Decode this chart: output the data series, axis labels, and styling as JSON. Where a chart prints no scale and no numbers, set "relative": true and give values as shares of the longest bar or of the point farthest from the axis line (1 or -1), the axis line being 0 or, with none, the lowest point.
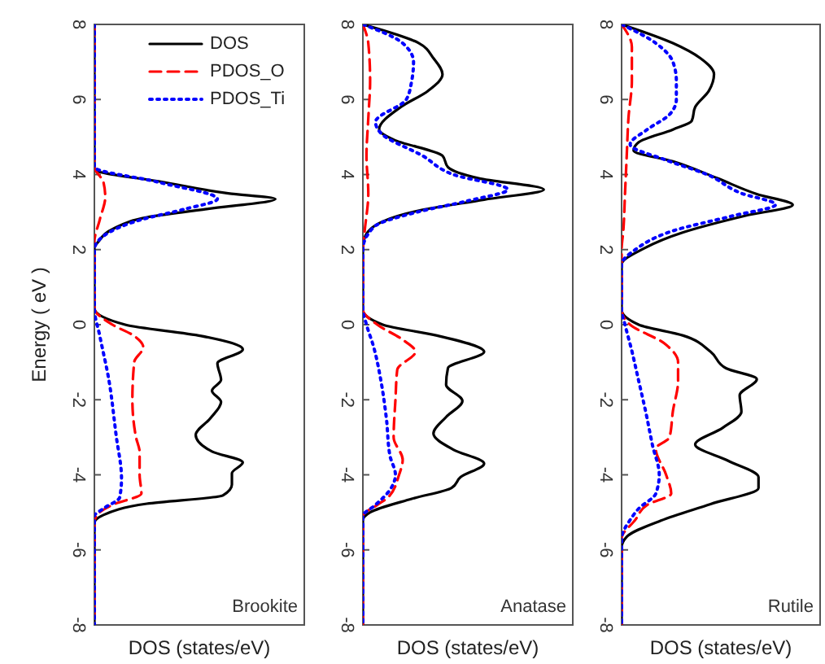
{
  "chart_data": [
    {
      "type": "line",
      "orientation": "horizontal",
      "relative": true,
      "ylabel": "Energy ( eV )",
      "xlabel": "DOS (states/eV)",
      "ylim": [
        -8,
        8
      ],
      "yticks": [
        -8,
        -6,
        -4,
        -2,
        0,
        2,
        4,
        6,
        8
      ],
      "legend": "top right",
      "annotations": [
        "Brookite"
      ],
      "series": [
        {
          "name": "DOS",
          "color": "#000000",
          "line_style": "solid",
          "x": [
            8,
            4.2,
            4.14,
            3.8,
            3.5,
            3.35,
            3.08,
            2.86,
            2.57,
            2.2,
            2.05,
            0.44,
            0,
            -0.3,
            -0.66,
            -1.03,
            -1.47,
            -1.76,
            -2.06,
            -2.5,
            -2.94,
            -3.38,
            -3.67,
            -3.96,
            -4.26,
            -4.55,
            -4.77,
            -5.07,
            -5.29,
            -8
          ],
          "values": [
            0,
            0,
            0,
            0.38,
            0.74,
            1,
            0.62,
            0.29,
            0.11,
            0.02,
            0,
            0,
            0.17,
            0.59,
            0.82,
            0.68,
            0.7,
            0.65,
            0.7,
            0.64,
            0.56,
            0.65,
            0.82,
            0.76,
            0.76,
            0.71,
            0.29,
            0.05,
            0,
            0
          ]
        },
        {
          "name": "PDOS_O",
          "color": "#ff0000",
          "line_style": "dashed",
          "x": [
            8,
            4.2,
            3.8,
            3.4,
            2.8,
            2.2,
            0.44,
            0,
            -0.3,
            -0.6,
            -1,
            -2,
            -3,
            -3.4,
            -4,
            -4.5,
            -4.8,
            -5.1,
            -5.3,
            -8
          ],
          "values": [
            0,
            0,
            0.05,
            0.06,
            0.03,
            0,
            0,
            0.1,
            0.22,
            0.27,
            0.22,
            0.21,
            0.23,
            0.25,
            0.25,
            0.26,
            0.1,
            0.01,
            0,
            0
          ]
        },
        {
          "name": "PDOS_Ti",
          "color": "#0000ff",
          "line_style": "dotted",
          "x": [
            8,
            4.2,
            3.8,
            3.35,
            3.08,
            2.8,
            2.36,
            2,
            0.44,
            -0.3,
            -1.47,
            -2.94,
            -4.1,
            -4.6,
            -4.9,
            -5.1,
            -8
          ],
          "values": [
            0,
            0,
            0.35,
            0.68,
            0.5,
            0.26,
            0.05,
            0,
            0,
            0.03,
            0.08,
            0.12,
            0.15,
            0.14,
            0.05,
            0,
            0
          ]
        }
      ]
    },
    {
      "type": "line",
      "orientation": "horizontal",
      "relative": true,
      "xlabel": "DOS (states/eV)",
      "ylim": [
        -8,
        8
      ],
      "yticks": [
        -8,
        -6,
        -4,
        -2,
        0,
        2,
        4,
        6,
        8
      ],
      "annotations": [
        "Anatase"
      ],
      "series": [
        {
          "color": "#000000",
          "line_style": "solid",
          "x": [
            8,
            7.5,
            7.1,
            6.67,
            6.23,
            5.8,
            5.2,
            4.93,
            4.5,
            4.2,
            3.9,
            3.6,
            3.33,
            3.04,
            2.75,
            2.32,
            2.03,
            0.4,
            0,
            -0.29,
            -0.72,
            -1.16,
            -1.6,
            -2.03,
            -2.46,
            -2.9,
            -3.33,
            -3.7,
            -4.06,
            -4.35,
            -4.64,
            -5,
            -5.22,
            -8
          ],
          "values": [
            0,
            0.31,
            0.39,
            0.44,
            0.36,
            0.21,
            0.09,
            0.17,
            0.44,
            0.47,
            0.64,
            1,
            0.67,
            0.31,
            0.11,
            0.01,
            0,
            0,
            0.11,
            0.41,
            0.67,
            0.47,
            0.46,
            0.55,
            0.46,
            0.39,
            0.5,
            0.67,
            0.54,
            0.49,
            0.27,
            0.04,
            0,
            0
          ]
        },
        {
          "color": "#ff0000",
          "line_style": "dashed",
          "x": [
            8,
            7.5,
            6.5,
            5.5,
            4.5,
            3.5,
            2.5,
            2,
            0.4,
            0,
            -0.4,
            -0.72,
            -1.2,
            -2,
            -3,
            -3.6,
            -4,
            -4.6,
            -4.8,
            -5.1,
            -8
          ],
          "values": [
            0,
            0.03,
            0.04,
            0.03,
            0.02,
            0.03,
            0.01,
            0,
            0,
            0.08,
            0.22,
            0.29,
            0.19,
            0.18,
            0.17,
            0.22,
            0.2,
            0.14,
            0.08,
            0,
            0
          ]
        },
        {
          "color": "#0000ff",
          "line_style": "dotted",
          "x": [
            8,
            7.5,
            7,
            6.5,
            6,
            5.4,
            5.1,
            4.5,
            4,
            3.6,
            3.3,
            3,
            2.6,
            2,
            0.4,
            0,
            -0.6,
            -1.5,
            -2.5,
            -3.5,
            -4,
            -4.4,
            -4.8,
            -5.1,
            -8
          ],
          "values": [
            0,
            0.22,
            0.28,
            0.27,
            0.24,
            0.07,
            0.1,
            0.33,
            0.5,
            0.8,
            0.58,
            0.3,
            0.06,
            0,
            0,
            0.02,
            0.06,
            0.1,
            0.13,
            0.15,
            0.18,
            0.15,
            0.07,
            0,
            0
          ]
        }
      ]
    },
    {
      "type": "line",
      "orientation": "horizontal",
      "relative": true,
      "xlabel": "DOS (states/eV)",
      "ylim": [
        -8,
        8
      ],
      "yticks": [
        -8,
        -6,
        -4,
        -2,
        0,
        2,
        4,
        6,
        8
      ],
      "annotations": [
        "Rutile"
      ],
      "series": [
        {
          "color": "#000000",
          "line_style": "solid",
          "x": [
            8,
            7.5,
            7.1,
            6.67,
            6.23,
            5.8,
            5.43,
            5.2,
            4.86,
            4.64,
            4.35,
            3.9,
            3.48,
            3.19,
            2.9,
            2.46,
            2.03,
            1.6,
            0.4,
            0,
            -0.29,
            -0.72,
            -1.16,
            -1.45,
            -1.88,
            -2.32,
            -2.75,
            -3.19,
            -3.62,
            -4.06,
            -4.35,
            -4.78,
            -5.22,
            -5.65,
            -5.94,
            -8
          ],
          "values": [
            0,
            0.3,
            0.46,
            0.54,
            0.51,
            0.43,
            0.41,
            0.3,
            0.1,
            0.07,
            0.3,
            0.56,
            0.79,
            1,
            0.72,
            0.36,
            0.13,
            0,
            0,
            0.1,
            0.36,
            0.52,
            0.61,
            0.79,
            0.69,
            0.7,
            0.59,
            0.43,
            0.62,
            0.8,
            0.8,
            0.52,
            0.23,
            0.03,
            0,
            0
          ]
        },
        {
          "color": "#ff0000",
          "line_style": "dashed",
          "x": [
            8,
            7.4,
            6.5,
            5.5,
            4.5,
            3.5,
            2.5,
            2,
            0.4,
            0,
            -0.5,
            -1,
            -1.5,
            -2.3,
            -3,
            -3.3,
            -4,
            -4.5,
            -4.8,
            -5.2,
            -5.7,
            -8
          ],
          "values": [
            0,
            0.06,
            0.06,
            0.04,
            0.03,
            0.02,
            0.01,
            0,
            0,
            0.05,
            0.25,
            0.33,
            0.33,
            0.3,
            0.28,
            0.2,
            0.26,
            0.29,
            0.15,
            0.08,
            0,
            0
          ]
        },
        {
          "color": "#0000ff",
          "line_style": "dotted",
          "x": [
            8,
            7.5,
            7,
            6.5,
            6,
            5.6,
            5.2,
            4.8,
            4.4,
            4,
            3.5,
            3.2,
            2.9,
            2.5,
            2,
            1.6,
            0.4,
            0,
            -0.7,
            -1.5,
            -2.3,
            -3.2,
            -4,
            -4.5,
            -4.9,
            -5.2,
            -5.7,
            -8
          ],
          "values": [
            0,
            0.2,
            0.3,
            0.32,
            0.32,
            0.28,
            0.15,
            0.05,
            0.25,
            0.5,
            0.7,
            0.9,
            0.65,
            0.3,
            0.08,
            0,
            0,
            0.02,
            0.06,
            0.1,
            0.14,
            0.18,
            0.22,
            0.2,
            0.1,
            0.05,
            0,
            0
          ]
        }
      ]
    }
  ]
}
